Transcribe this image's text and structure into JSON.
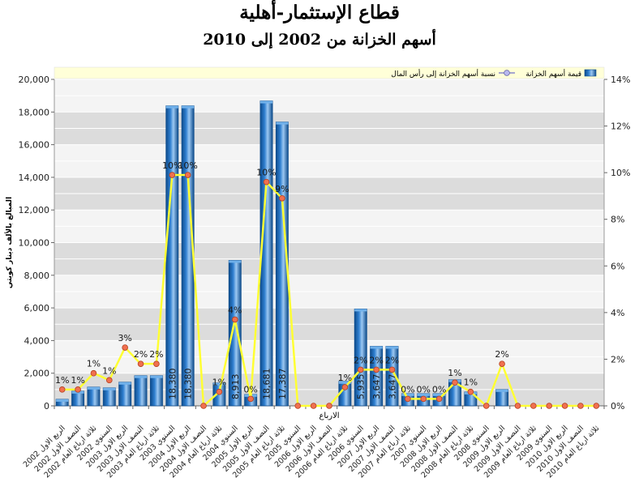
{
  "chart_data": {
    "type": "bar",
    "title": "قطاع الإستثمار-أهلية",
    "subtitle": "أسهم الخزانة من 2002 إلى 2010",
    "xlabel": "الارباع",
    "ylabel": "المبالغ بالألف دينار كويتي",
    "ylim": [
      0,
      20000
    ],
    "y2lim": [
      0,
      14
    ],
    "yticks": [
      "0",
      "2,000",
      "4,000",
      "6,000",
      "8,000",
      "10,000",
      "12,000",
      "14,000",
      "16,000",
      "18,000",
      "20,000"
    ],
    "y2ticks": [
      "0%",
      "2%",
      "4%",
      "6%",
      "8%",
      "10%",
      "12%",
      "14%"
    ],
    "grid": true,
    "legend_position": "top",
    "categories": [
      "الربع الاول 2002",
      "النصف الاول 2002",
      "ثلاثة ارباع العام 2002",
      "السنوي 2002",
      "الربع الاول 2003",
      "النصف الاول 2003",
      "ثلاثة ارباع العام 2003",
      "السنوي 2003",
      "الربع الاول 2004",
      "النصف الاول 2004",
      "ثلاثة ارباع العام 2004",
      "السنوي 2004",
      "الربع الاول 2005",
      "النصف الاول 2005",
      "ثلاثة ارباع العام 2005",
      "السنوي 2005",
      "الربع الاول 2006",
      "النصف الاول 2006",
      "ثلاثة ارباع العام 2006",
      "السنوي 2006",
      "الربع الاول 2007",
      "النصف الاول 2007",
      "ثلاثة ارباع العام 2007",
      "السنوي 2007",
      "الربع الاول 2008",
      "النصف الاول 2008",
      "ثلاثة ارباع العام 2008",
      "السنوي 2008",
      "الربع الاول 2009",
      "النصف الاول 2009",
      "ثلاثة ارباع العام 2009",
      "السنوي 2009",
      "الربع الاول 2010",
      "النصف الاول 2010",
      "ثلاثة ارباع العام 2010"
    ],
    "series": [
      {
        "name": "قيمة أسهم الخزانة",
        "kind": "bar",
        "axis": "left",
        "values": [
          400,
          900,
          1150,
          1100,
          1450,
          1850,
          1850,
          18380,
          18380,
          0,
          1400,
          8913,
          700,
          18681,
          17387,
          0,
          0,
          0,
          1500,
          5935,
          3647,
          3647,
          750,
          750,
          750,
          1600,
          850,
          0,
          1000,
          0,
          0,
          0,
          0,
          0,
          0
        ],
        "bar_labels": [
          "",
          "",
          "",
          "",
          "",
          "",
          "",
          "18,380",
          "18,380",
          "",
          "",
          "8,913",
          "",
          "18,681",
          "17,387",
          "",
          "",
          "",
          "",
          "5,935",
          "3,647",
          "3,647",
          "",
          "",
          "",
          "",
          "",
          "",
          "",
          "",
          "",
          "",
          "",
          "",
          ""
        ]
      },
      {
        "name": "نسبة أسهم الخزانة إلى رأس المال",
        "kind": "line",
        "axis": "right",
        "values": [
          0.7,
          0.7,
          1.4,
          1.1,
          2.5,
          1.8,
          1.8,
          9.9,
          9.9,
          0,
          0.6,
          3.7,
          0.3,
          9.6,
          8.9,
          0,
          0,
          0,
          0.8,
          1.55,
          1.55,
          1.55,
          0.3,
          0.3,
          0.3,
          1.0,
          0.6,
          0,
          1.8,
          0,
          0,
          0,
          0,
          0,
          0
        ],
        "point_labels": [
          "1%",
          "1%",
          "1%",
          "1%",
          "3%",
          "2%",
          "2%",
          "10%",
          "10%",
          "",
          "1%",
          "4%",
          "0%",
          "10%",
          "9%",
          "",
          "",
          "",
          "1%",
          "2%",
          "2%",
          "2%",
          "0%",
          "0%",
          "0%",
          "1%",
          "1%",
          "",
          "2%",
          "",
          "",
          "",
          "",
          "",
          ""
        ]
      }
    ],
    "colors": {
      "bar": "#2f7fd0",
      "bar_dark": "#0e4c8c",
      "line": "#ffff33",
      "marker": "#f07050",
      "band_dark": "#dcdcdc",
      "band_light": "#ececec",
      "legend_bg": "#ffffd8"
    }
  }
}
